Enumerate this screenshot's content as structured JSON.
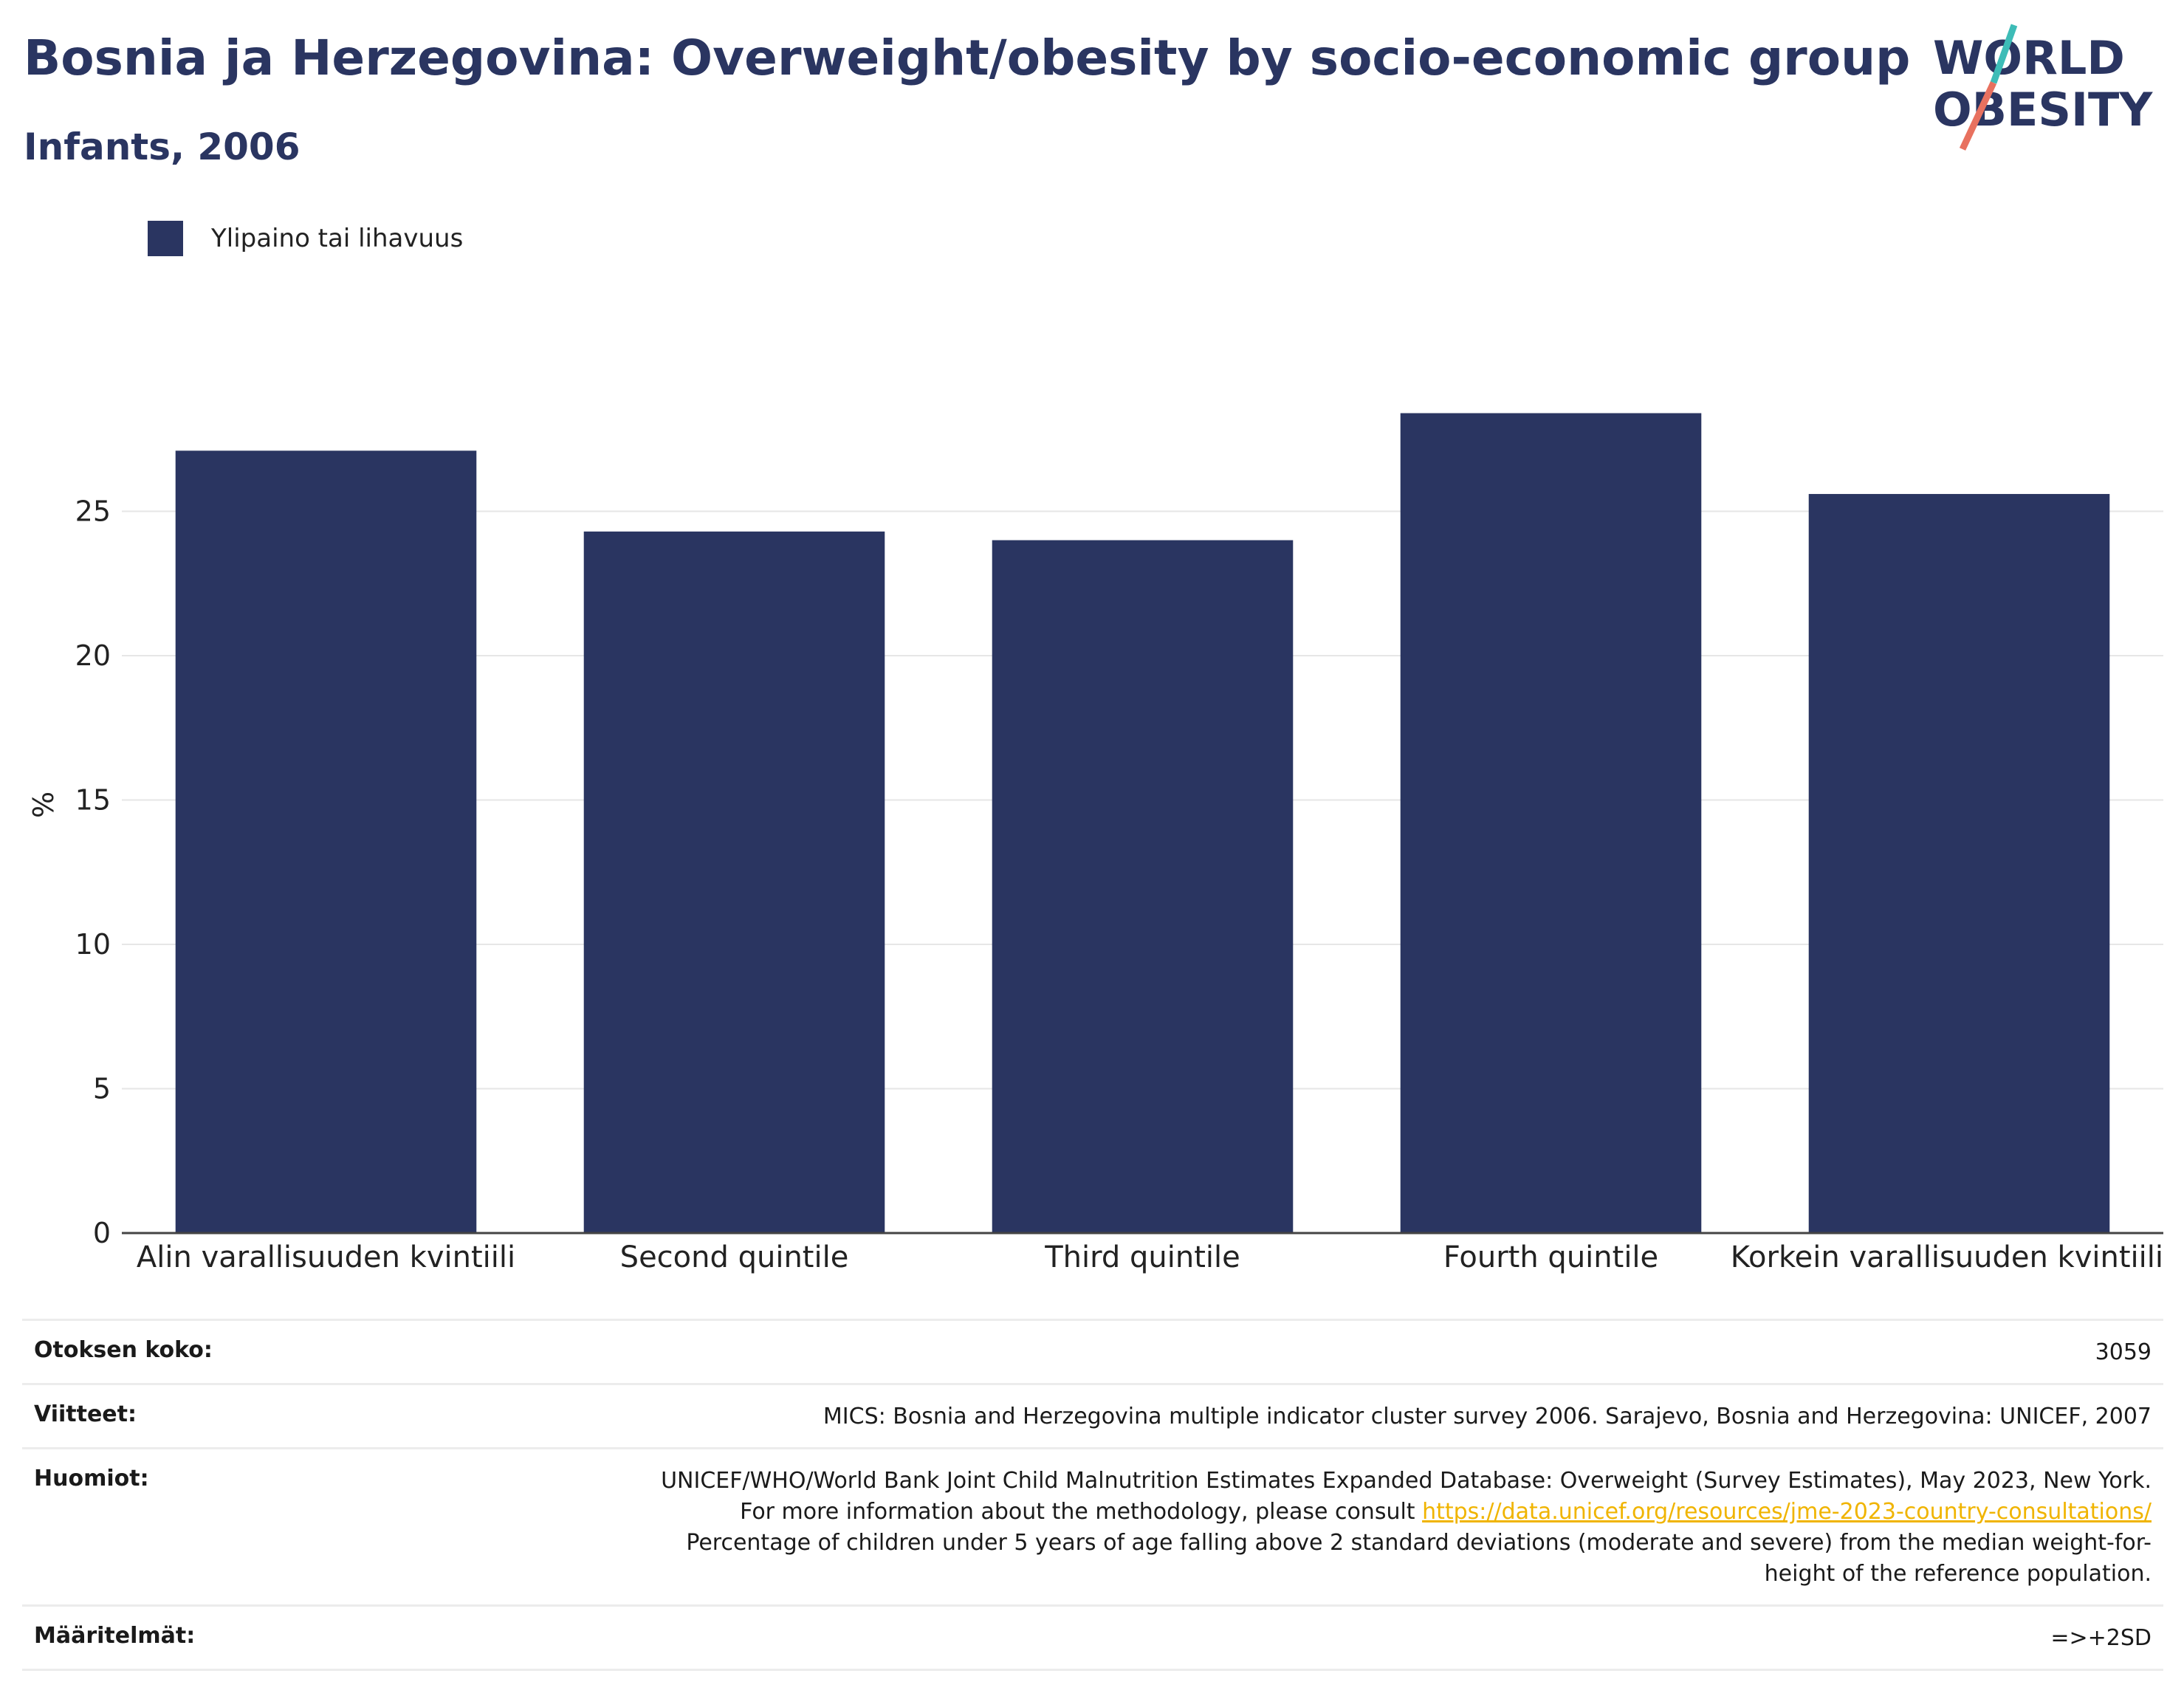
{
  "header": {
    "title": "Bosnia ja Herzegovina: Overweight/obesity by socio-economic group",
    "subtitle": "Infants, 2006",
    "logo_text": [
      "WORLD",
      "OBESITY"
    ]
  },
  "legend": {
    "label": "Ylipaino tai lihavuus"
  },
  "colors": {
    "bar": "#2a3561",
    "title": "#2a3561",
    "link": "#f0b400",
    "logo_teal": "#3dbcb7",
    "logo_coral": "#e8715f"
  },
  "chart_data": {
    "type": "bar",
    "ylabel": "%",
    "xlabel": "",
    "ylim": [
      0,
      30
    ],
    "yticks": [
      0,
      5,
      10,
      15,
      20,
      25
    ],
    "grid": true,
    "legend_position": "top-left",
    "categories": [
      "Alin varallisuuden kvintiili",
      "Second quintile",
      "Third quintile",
      "Fourth quintile",
      "Korkein varallisuuden kvintiili"
    ],
    "series": [
      {
        "name": "Ylipaino tai lihavuus",
        "values": [
          27.1,
          24.3,
          24.0,
          28.4,
          25.6
        ]
      }
    ]
  },
  "meta": {
    "sample_size": {
      "label": "Otoksen koko:",
      "value": "3059"
    },
    "references": {
      "label": "Viitteet:",
      "value": "MICS: Bosnia and Herzegovina multiple indicator cluster survey 2006. Sarajevo, Bosnia and Herzegovina: UNICEF, 2007"
    },
    "notes": {
      "label": "Huomiot:",
      "text1": "UNICEF/WHO/World Bank Joint Child Malnutrition Estimates Expanded Database: Overweight (Survey Estimates), May 2023, New York. For more information about the methodology, please consult ",
      "link": "https://data.unicef.org/resources/jme-2023-country-consultations/",
      "text2": "Percentage of children under 5 years of age falling above 2 standard deviations (moderate and severe) from the median weight-for-height of the reference population."
    },
    "definitions": {
      "label": "Määritelmät:",
      "value": "=>+2SD"
    }
  }
}
